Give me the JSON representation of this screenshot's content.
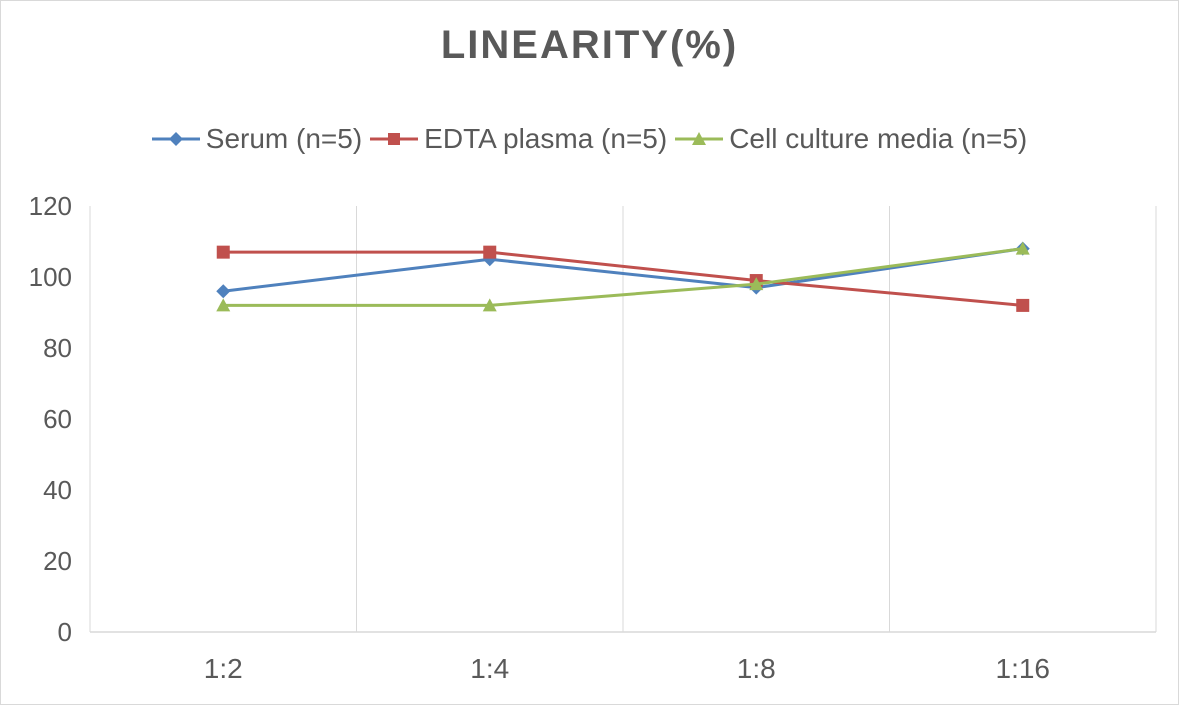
{
  "chart_data": {
    "type": "line",
    "title": "LINEARITY(%)",
    "xlabel": "",
    "ylabel": "",
    "categories": [
      "1:2",
      "1:4",
      "1:8",
      "1:16"
    ],
    "ylim": [
      0,
      120
    ],
    "yticks": [
      0,
      20,
      40,
      60,
      80,
      100,
      120
    ],
    "grid": "vertical",
    "legend_position": "top",
    "series": [
      {
        "name": "Serum (n=5)",
        "values": [
          96,
          105,
          97,
          108
        ],
        "color": "#4f81bd",
        "marker": "diamond"
      },
      {
        "name": "EDTA plasma (n=5)",
        "values": [
          107,
          107,
          99,
          92
        ],
        "color": "#c0504d",
        "marker": "square"
      },
      {
        "name": "Cell culture media (n=5)",
        "values": [
          92,
          92,
          98,
          108
        ],
        "color": "#9bbb59",
        "marker": "triangle"
      }
    ]
  }
}
